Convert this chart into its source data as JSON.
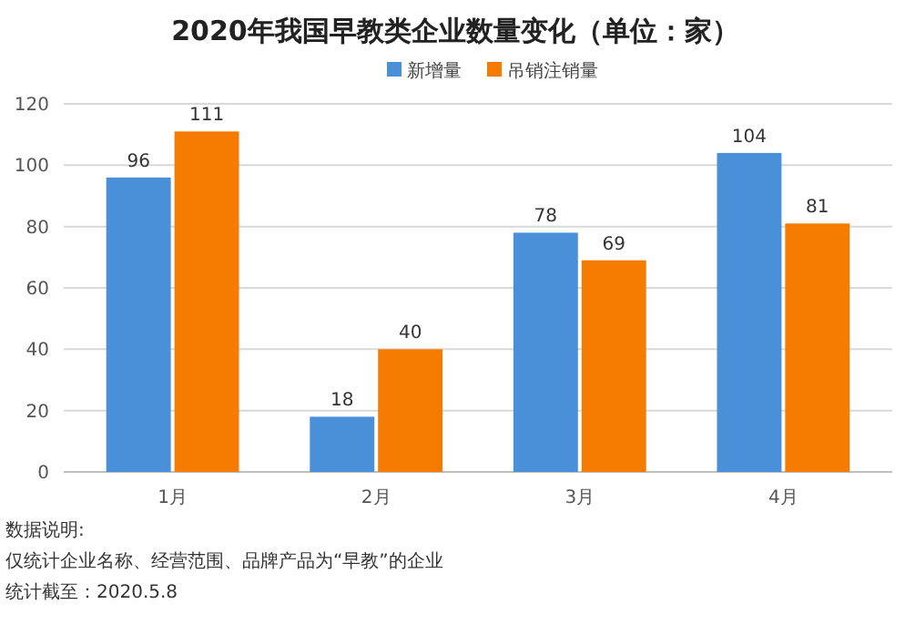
{
  "chart_data": {
    "type": "bar",
    "title": "2020年我国早教类企业数量变化（单位：家）",
    "categories": [
      "1月",
      "2月",
      "3月",
      "4月"
    ],
    "series": [
      {
        "name": "新增量",
        "color": "#4a90d9",
        "values": [
          96,
          18,
          78,
          104
        ]
      },
      {
        "name": "吊销注销量",
        "color": "#f57c00",
        "values": [
          111,
          40,
          69,
          81
        ]
      }
    ],
    "ylim": [
      0,
      120
    ],
    "yticks": [
      0,
      20,
      40,
      60,
      80,
      100,
      120
    ],
    "grid": "y",
    "legend": "top",
    "data_labels": true,
    "annotations": [
      "数据说明:",
      "仅统计企业名称、经营范围、品牌产品为“早教”的企业",
      "统计截至：2020.5.8"
    ]
  }
}
